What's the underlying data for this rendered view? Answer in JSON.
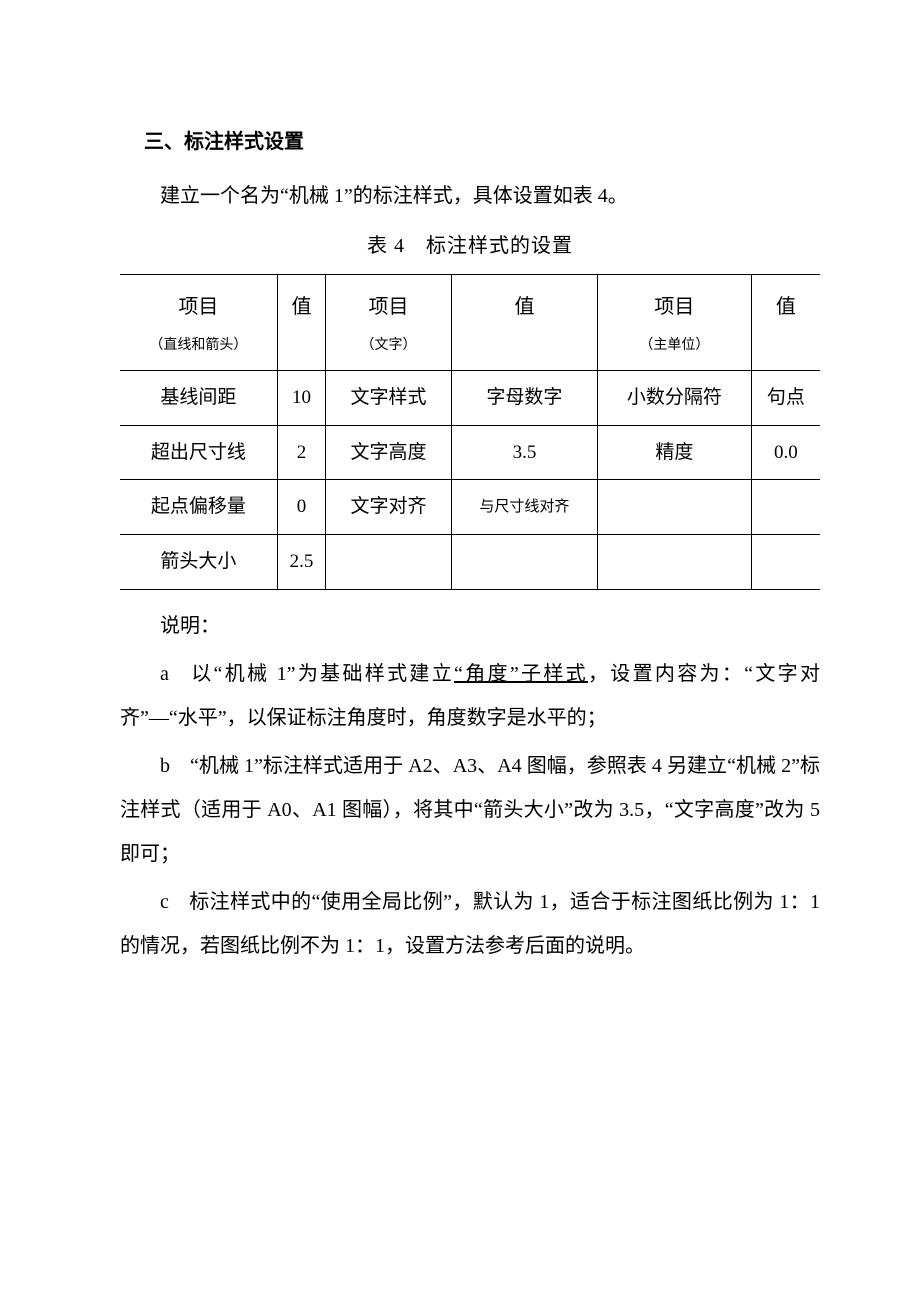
{
  "heading": "三、标注样式设置",
  "intro": "建立一个名为“机械 1”的标注样式，具体设置如表 4。",
  "table": {
    "caption": "表 4 标注样式的设置",
    "columns": [
      "项目",
      "值",
      "项目",
      "值",
      "项目",
      "值"
    ],
    "subcolumns": [
      "（直线和箭头）",
      "",
      "（文字）",
      "",
      "（主单位）",
      ""
    ],
    "rows": [
      [
        "基线间距",
        "10",
        "文字样式",
        "字母数字",
        "小数分隔符",
        "句点"
      ],
      [
        "超出尺寸线",
        "2",
        "文字高度",
        "3.5",
        "精度",
        "0.0"
      ],
      [
        "起点偏移量",
        "0",
        "文字对齐",
        "与尺寸线对齐",
        "",
        ""
      ],
      [
        "箭头大小",
        "2.5",
        "",
        "",
        "",
        ""
      ]
    ],
    "smallCell": {
      "row": 2,
      "col": 3
    },
    "border_color": "#000000",
    "text_color": "#000000",
    "background_color": "#ffffff"
  },
  "notes": {
    "label": "说明：",
    "items": {
      "a_pre": "a 以“机械 1”为基础样式建立",
      "a_underlined": "“角度”子样式",
      "a_post": "，设置内容为：“文字对齐”—“水平”，以保证标注角度时，角度数字是水平的；",
      "b": "b “机械 1”标注样式适用于 A2、A3、A4 图幅，参照表 4 另建立“机械 2”标注样式（适用于 A0、A1 图幅），将其中“箭头大小”改为 3.5，“文字高度”改为 5 即可；",
      "c": "c 标注样式中的“使用全局比例”，默认为 1，适合于标注图纸比例为 1：1 的情况，若图纸比例不为 1：1，设置方法参考后面的说明。"
    }
  }
}
